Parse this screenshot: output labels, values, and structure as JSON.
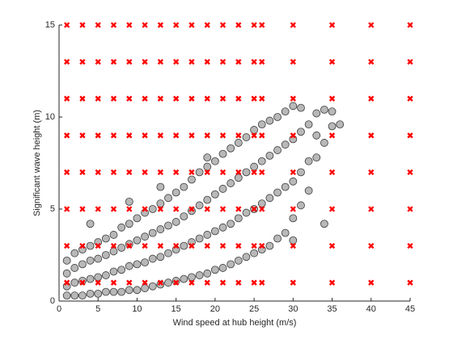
{
  "chart_data": {
    "type": "scatter",
    "xlabel": "Wind speed at hub height (m/s)",
    "ylabel": "Significant wave height (m)",
    "xlim": [
      0,
      45
    ],
    "ylim": [
      0,
      15
    ],
    "xticks": [
      0,
      5,
      10,
      15,
      20,
      25,
      30,
      35,
      40,
      45
    ],
    "yticks": [
      0,
      5,
      10,
      15
    ],
    "series": [
      {
        "color": "#a6a6a6",
        "marker": "circle",
        "x": [
          1,
          1,
          1,
          1,
          2,
          2,
          2,
          2,
          3,
          3,
          3,
          3,
          4,
          4,
          4,
          4,
          4,
          5,
          5,
          5,
          5,
          6,
          6,
          6,
          6,
          7,
          7,
          7,
          7,
          8,
          8,
          8,
          8,
          9,
          9,
          9,
          9,
          9,
          10,
          10,
          10,
          10,
          11,
          11,
          11,
          11,
          12,
          12,
          12,
          12,
          13,
          13,
          13,
          13,
          13,
          14,
          14,
          14,
          14,
          15,
          15,
          15,
          15,
          16,
          16,
          16,
          16,
          17,
          17,
          17,
          17,
          18,
          18,
          18,
          18,
          19,
          19,
          19,
          19,
          19,
          20,
          20,
          20,
          20,
          21,
          21,
          21,
          21,
          22,
          22,
          22,
          22,
          23,
          23,
          23,
          23,
          24,
          24,
          24,
          24,
          25,
          25,
          25,
          25,
          26,
          26,
          26,
          26,
          27,
          27,
          27,
          27,
          28,
          28,
          28,
          28,
          29,
          29,
          29,
          29,
          30,
          30,
          30,
          30,
          30,
          31,
          31,
          31,
          31,
          32,
          32,
          32,
          33,
          33,
          33,
          34,
          34,
          34,
          35,
          35,
          36
        ],
        "y": [
          0.3,
          0.8,
          1.5,
          2.2,
          0.3,
          1.0,
          1.8,
          2.6,
          0.3,
          1.1,
          2.0,
          2.8,
          0.4,
          1.2,
          2.2,
          3.0,
          4.2,
          0.4,
          1.3,
          2.3,
          3.2,
          0.5,
          1.4,
          2.5,
          3.4,
          0.5,
          1.6,
          2.7,
          3.6,
          0.5,
          1.7,
          2.9,
          4.0,
          0.6,
          1.9,
          3.1,
          4.2,
          5.4,
          0.6,
          2.0,
          3.3,
          4.5,
          0.7,
          2.1,
          3.5,
          4.8,
          0.8,
          2.3,
          3.7,
          5.0,
          0.9,
          2.4,
          3.9,
          5.3,
          6.2,
          1.0,
          2.6,
          4.1,
          5.6,
          1.1,
          2.8,
          4.3,
          5.9,
          1.2,
          3.0,
          4.6,
          6.2,
          1.3,
          3.2,
          4.9,
          6.6,
          1.4,
          3.4,
          5.2,
          7.0,
          1.5,
          3.6,
          5.5,
          7.3,
          7.8,
          1.7,
          3.8,
          5.8,
          7.6,
          1.8,
          4.0,
          6.1,
          8.0,
          2.0,
          4.2,
          6.4,
          8.3,
          2.2,
          4.5,
          6.7,
          8.6,
          2.4,
          4.8,
          7.0,
          8.9,
          2.6,
          5.0,
          7.3,
          9.3,
          2.8,
          5.3,
          7.6,
          9.6,
          3.0,
          5.6,
          7.9,
          9.8,
          3.4,
          5.9,
          8.2,
          10.0,
          3.7,
          6.2,
          8.5,
          10.3,
          3.3,
          4.5,
          6.5,
          8.8,
          10.6,
          5.2,
          7.0,
          9.2,
          10.5,
          6.0,
          7.6,
          9.6,
          7.8,
          9.0,
          10.2,
          4.2,
          8.6,
          10.4,
          9.5,
          10.3,
          9.6
        ]
      },
      {
        "color": "#ff0000",
        "marker": "x",
        "x": [
          1,
          3,
          5,
          7,
          9,
          11,
          13,
          15,
          17,
          19,
          21,
          23,
          25,
          26,
          30,
          35,
          40,
          45,
          1,
          3,
          5,
          7,
          9,
          11,
          13,
          15,
          17,
          19,
          21,
          23,
          25,
          26,
          30,
          35,
          40,
          45,
          1,
          3,
          5,
          7,
          9,
          11,
          13,
          15,
          17,
          19,
          21,
          23,
          25,
          26,
          30,
          35,
          40,
          45,
          1,
          3,
          5,
          7,
          9,
          11,
          13,
          15,
          17,
          19,
          21,
          23,
          25,
          26,
          30,
          35,
          40,
          45,
          1,
          3,
          5,
          7,
          9,
          11,
          13,
          15,
          17,
          19,
          21,
          23,
          25,
          26,
          30,
          35,
          40,
          45,
          1,
          3,
          5,
          7,
          9,
          11,
          13,
          15,
          17,
          19,
          21,
          23,
          25,
          26,
          30,
          35,
          40,
          45,
          1,
          3,
          5,
          7,
          9,
          11,
          13,
          15,
          17,
          19,
          21,
          23,
          25,
          26,
          30,
          35,
          40,
          45,
          1,
          3,
          5,
          7,
          9,
          11,
          13,
          15,
          17,
          19,
          21,
          23,
          25,
          26,
          30,
          35,
          40,
          45
        ],
        "y": [
          1,
          1,
          1,
          1,
          1,
          1,
          1,
          1,
          1,
          1,
          1,
          1,
          1,
          1,
          1,
          1,
          1,
          1,
          3,
          3,
          3,
          3,
          3,
          3,
          3,
          3,
          3,
          3,
          3,
          3,
          3,
          3,
          3,
          3,
          3,
          3,
          5,
          5,
          5,
          5,
          5,
          5,
          5,
          5,
          5,
          5,
          5,
          5,
          5,
          5,
          5,
          5,
          5,
          5,
          7,
          7,
          7,
          7,
          7,
          7,
          7,
          7,
          7,
          7,
          7,
          7,
          7,
          7,
          7,
          7,
          7,
          7,
          9,
          9,
          9,
          9,
          9,
          9,
          9,
          9,
          9,
          9,
          9,
          9,
          9,
          9,
          9,
          9,
          9,
          9,
          11,
          11,
          11,
          11,
          11,
          11,
          11,
          11,
          11,
          11,
          11,
          11,
          11,
          11,
          11,
          11,
          11,
          11,
          13,
          13,
          13,
          13,
          13,
          13,
          13,
          13,
          13,
          13,
          13,
          13,
          13,
          13,
          13,
          13,
          13,
          13,
          15,
          15,
          15,
          15,
          15,
          15,
          15,
          15,
          15,
          15,
          15,
          15,
          15,
          15,
          15,
          15,
          15,
          15
        ]
      }
    ]
  }
}
